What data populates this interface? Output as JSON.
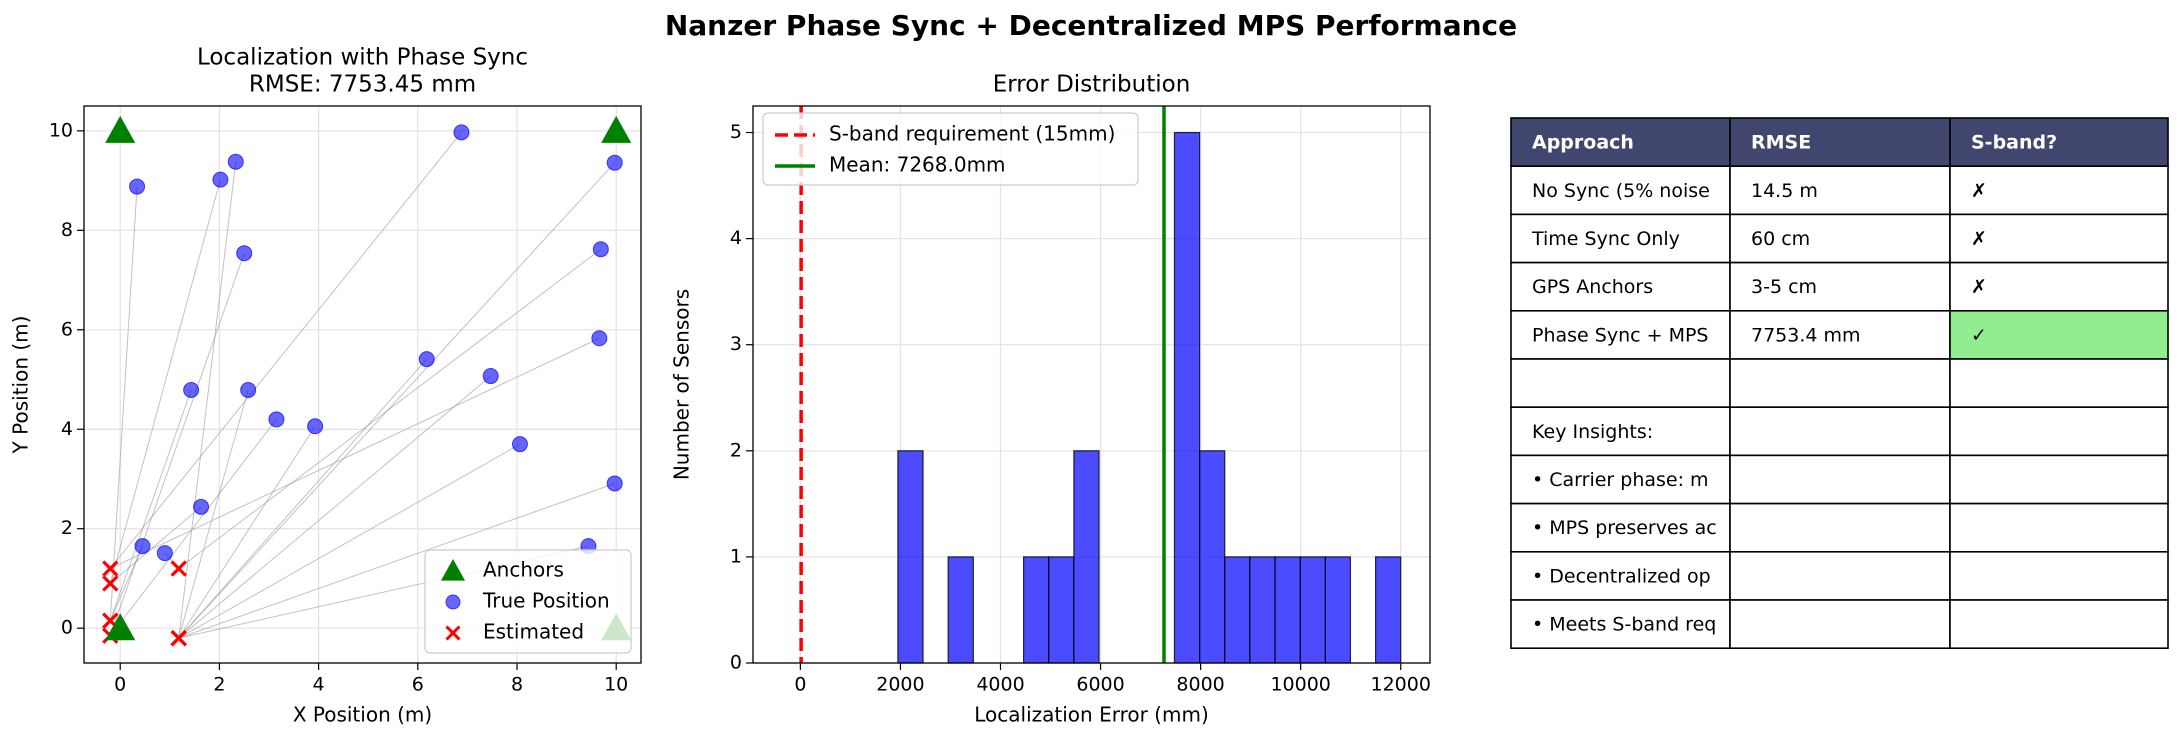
{
  "title": "Nanzer Phase Sync + Decentralized MPS Performance",
  "chart_data": [
    {
      "type": "scatter",
      "title": "Localization with Phase Sync",
      "subtitle": "RMSE: 7753.45 mm",
      "x_label": "X Position (m)",
      "y_label": "Y Position (m)",
      "xlim": [
        -0.73,
        10.5
      ],
      "ylim": [
        -0.7,
        10.5
      ],
      "xticks": [
        0,
        2,
        4,
        6,
        8,
        10
      ],
      "yticks": [
        0,
        2,
        4,
        6,
        8,
        10
      ],
      "grid": true,
      "legend": "lower right",
      "connect": true,
      "series": [
        {
          "name": "Anchors",
          "color": "#008000",
          "marker": "triangle",
          "x": [
            0,
            10,
            0,
            10
          ],
          "y": [
            10,
            10,
            0,
            0
          ]
        },
        {
          "name": "True Position",
          "color": "#0000ff",
          "marker": "circle",
          "x": [
            0.34,
            2.02,
            2.33,
            6.88,
            9.97,
            2.5,
            9.69,
            9.66,
            6.18,
            7.47,
            1.43,
            2.58,
            3.15,
            3.93,
            8.06,
            9.97,
            1.63,
            0.45,
            0.9,
            9.44
          ],
          "y": [
            8.88,
            9.02,
            9.38,
            9.97,
            9.36,
            7.54,
            7.62,
            5.83,
            5.41,
            5.07,
            4.79,
            4.79,
            4.2,
            4.06,
            3.7,
            2.91,
            2.44,
            1.65,
            1.51,
            1.65
          ]
        },
        {
          "name": "Estimated",
          "color": "#ff0000",
          "marker": "x",
          "x": [
            -0.2,
            -0.2,
            1.18,
            -0.2,
            1.18,
            -0.2,
            1.18,
            -0.2,
            1.18,
            1.18,
            -0.2,
            1.18,
            -0.2,
            1.18,
            1.18,
            1.18,
            -0.2,
            -0.2,
            1.18,
            1.18
          ],
          "y": [
            0.15,
            0.9,
            -0.2,
            1.2,
            -0.2,
            -0.15,
            1.2,
            1.2,
            -0.2,
            -0.2,
            0.15,
            -0.2,
            -0.15,
            -0.2,
            -0.2,
            -0.2,
            0.9,
            0.15,
            1.2,
            -0.2
          ]
        }
      ]
    },
    {
      "type": "histogram",
      "title": "Error Distribution",
      "x_label": "Localization Error (mm)",
      "y_label": "Number of Sensors",
      "xlim": [
        -947,
        12585
      ],
      "ylim": [
        0,
        5.25
      ],
      "xticks": [
        0,
        2000,
        4000,
        6000,
        8000,
        10000,
        12000
      ],
      "yticks": [
        0,
        1,
        2,
        3,
        4,
        5
      ],
      "grid": true,
      "legend": "upper left",
      "color": "#0000ff",
      "bins": [
        1949,
        2451.6,
        2954.1,
        3456.7,
        3959.2,
        4461.8,
        4964.3,
        5466.9,
        5969.4,
        6472,
        6974.5,
        7477.1,
        7979.6,
        8482.2,
        8984.7,
        9487.3,
        9989.8,
        10492.4,
        10994.9,
        11497.5,
        12000
      ],
      "counts": [
        2,
        0,
        1,
        0,
        0,
        1,
        1,
        2,
        0,
        0,
        0,
        5,
        2,
        1,
        1,
        1,
        1,
        1,
        0,
        1
      ],
      "vlines": [
        {
          "name": "S-band requirement (15mm)",
          "value": 15,
          "color": "#ff0000",
          "dashed": true
        },
        {
          "name": "Mean: 7268.0mm",
          "value": 7268,
          "color": "#008000",
          "dashed": false
        }
      ]
    }
  ],
  "table": {
    "header_color": "#40466e",
    "highlight_color": "#90ee90",
    "columns": [
      "Approach",
      "RMSE",
      "S-band?"
    ],
    "rows": [
      [
        "No Sync (5% noise",
        "14.5 m",
        "✗"
      ],
      [
        "Time Sync Only",
        "60 cm",
        "✗"
      ],
      [
        "GPS Anchors",
        "3-5 cm",
        "✗"
      ],
      [
        "Phase Sync + MPS",
        "7753.4 mm",
        "✓"
      ],
      [
        null,
        null,
        null
      ],
      [
        "Key Insights:",
        null,
        null
      ],
      [
        "• Carrier phase: m",
        null,
        null
      ],
      [
        "• MPS preserves ac",
        null,
        null
      ],
      [
        "• Decentralized op",
        null,
        null
      ],
      [
        "• Meets S-band req",
        null,
        null
      ]
    ],
    "highlight": "Phase Sync + MPS"
  }
}
